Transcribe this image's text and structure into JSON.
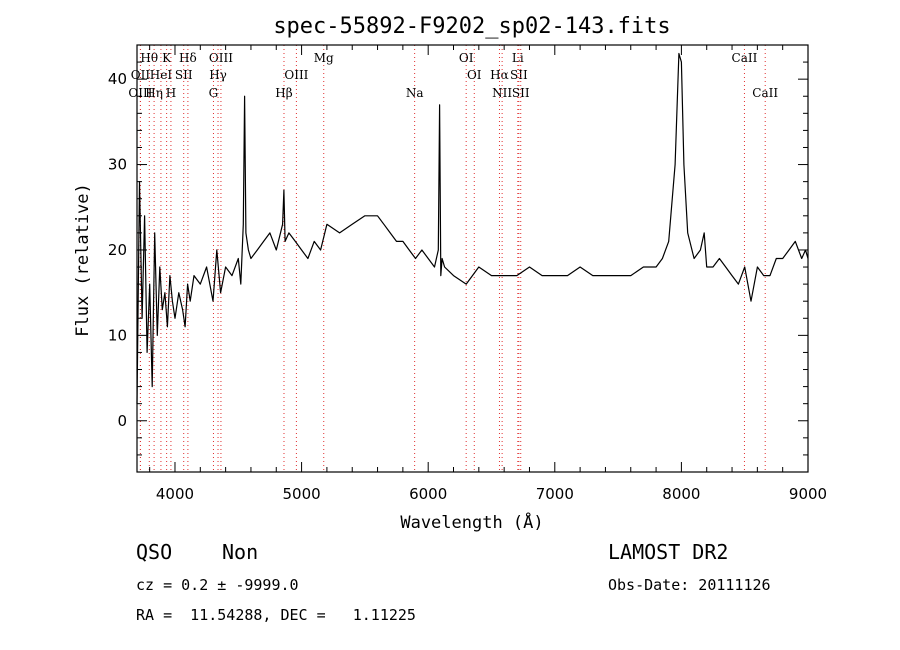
{
  "chart_data": {
    "type": "line",
    "title": "spec-55892-F9202_sp02-143.fits",
    "xlabel": "Wavelength (Å)",
    "ylabel": "Flux (relative)",
    "xlim": [
      3700,
      9000
    ],
    "ylim": [
      -6,
      44
    ],
    "x_ticks": [
      4000,
      5000,
      6000,
      7000,
      8000,
      9000
    ],
    "x_tick_labels": [
      "4000",
      "5000",
      "6000",
      "7000",
      "8000",
      "9000"
    ],
    "y_ticks": [
      0,
      10,
      20,
      30,
      40
    ],
    "y_tick_labels": [
      "0",
      "10",
      "20",
      "30",
      "40"
    ],
    "grid": false,
    "series": [
      {
        "x": [
          3700,
          3720,
          3740,
          3760,
          3780,
          3800,
          3820,
          3840,
          3860,
          3880,
          3900,
          3920,
          3940,
          3960,
          3980,
          4000,
          4030,
          4060,
          4080,
          4100,
          4120,
          4150,
          4200,
          4250,
          4300,
          4330,
          4360,
          4400,
          4450,
          4500,
          4520,
          4540,
          4550,
          4560,
          4580,
          4600,
          4650,
          4700,
          4750,
          4800,
          4850,
          4860,
          4870,
          4900,
          4950,
          5000,
          5050,
          5100,
          5150,
          5200,
          5300,
          5400,
          5500,
          5600,
          5650,
          5700,
          5750,
          5800,
          5850,
          5900,
          5950,
          6000,
          6050,
          6080,
          6090,
          6100,
          6110,
          6130,
          6200,
          6300,
          6400,
          6500,
          6600,
          6700,
          6800,
          6900,
          7000,
          7100,
          7200,
          7300,
          7400,
          7500,
          7600,
          7700,
          7800,
          7850,
          7900,
          7950,
          7980,
          8000,
          8020,
          8050,
          8100,
          8150,
          8180,
          8200,
          8250,
          8300,
          8350,
          8400,
          8450,
          8500,
          8550,
          8600,
          8650,
          8700,
          8750,
          8800,
          8850,
          8900,
          8950,
          8980,
          9000
        ],
        "y": [
          2,
          28,
          12,
          24,
          8,
          16,
          4,
          22,
          10,
          18,
          13,
          15,
          11,
          17,
          14,
          12,
          15,
          13,
          11,
          16,
          14,
          17,
          16,
          18,
          14,
          20,
          15,
          18,
          17,
          19,
          16,
          23,
          38,
          22,
          20,
          19,
          20,
          21,
          22,
          20,
          23,
          27,
          21,
          22,
          21,
          20,
          19,
          21,
          20,
          23,
          22,
          23,
          24,
          24,
          23,
          22,
          21,
          21,
          20,
          19,
          20,
          19,
          18,
          20,
          37,
          17,
          19,
          18,
          17,
          16,
          18,
          17,
          17,
          17,
          18,
          17,
          17,
          17,
          18,
          17,
          17,
          17,
          17,
          18,
          18,
          19,
          21,
          30,
          43,
          42,
          30,
          22,
          19,
          20,
          22,
          18,
          18,
          19,
          18,
          17,
          16,
          18,
          14,
          18,
          17,
          17,
          19,
          19,
          20,
          21,
          19,
          20,
          19
        ]
      }
    ],
    "line_markers": [
      {
        "label": "Hθ",
        "x": 3797,
        "row": 1
      },
      {
        "label": "OII",
        "x": 3727,
        "row": 2
      },
      {
        "label": "OIII",
        "x": 3727,
        "row": 3
      },
      {
        "label": "K",
        "x": 3934,
        "row": 1
      },
      {
        "label": "HeI",
        "x": 3889,
        "row": 2
      },
      {
        "label": "Hη",
        "x": 3835,
        "row": 3
      },
      {
        "label": "Hδ",
        "x": 4102,
        "row": 1
      },
      {
        "label": "SII",
        "x": 4069,
        "row": 2
      },
      {
        "label": "H",
        "x": 3968,
        "row": 3
      },
      {
        "label": "OIII",
        "x": 4363,
        "row": 1
      },
      {
        "label": "Hγ",
        "x": 4340,
        "row": 2
      },
      {
        "label": "G",
        "x": 4304,
        "row": 3
      },
      {
        "label": "Mg",
        "x": 5175,
        "row": 1
      },
      {
        "label": "OIII",
        "x": 4959,
        "row": 2
      },
      {
        "label": "Hβ",
        "x": 4861,
        "row": 3
      },
      {
        "label": "Na",
        "x": 5893,
        "row": 3
      },
      {
        "label": "OI",
        "x": 6300,
        "row": 1
      },
      {
        "label": "OI",
        "x": 6364,
        "row": 2
      },
      {
        "label": "Li",
        "x": 6708,
        "row": 1
      },
      {
        "label": "Hα",
        "x": 6563,
        "row": 2
      },
      {
        "label": "SII",
        "x": 6716,
        "row": 2
      },
      {
        "label": "NII",
        "x": 6584,
        "row": 3
      },
      {
        "label": "SII",
        "x": 6731,
        "row": 3
      },
      {
        "label": "CaII",
        "x": 8498,
        "row": 1
      },
      {
        "label": "CaII",
        "x": 8662,
        "row": 3
      }
    ]
  },
  "info": {
    "class": "QSO",
    "subclass": "Non",
    "survey": "LAMOST DR2",
    "cz": "cz = 0.2 ± -9999.0",
    "obs_date": "Obs-Date: 20111126",
    "coords": "RA =  11.54288, DEC =   1.11225"
  }
}
